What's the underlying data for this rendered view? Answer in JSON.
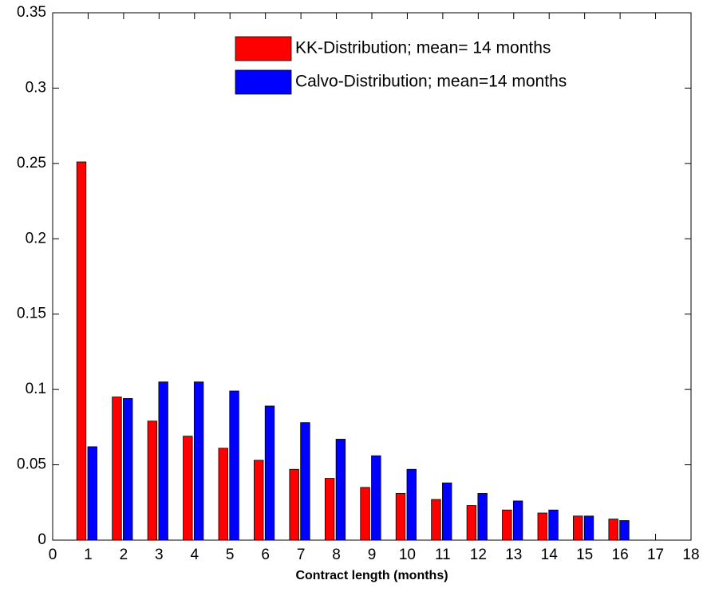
{
  "chart_data": {
    "type": "bar",
    "x_label": "Contract length (months)",
    "x": [
      1,
      2,
      3,
      4,
      5,
      6,
      7,
      8,
      9,
      10,
      11,
      12,
      13,
      14,
      15,
      16
    ],
    "series": [
      {
        "name": "KK-Distribution; mean= 14 months",
        "color": "#ff0000",
        "values": [
          0.251,
          0.095,
          0.079,
          0.069,
          0.061,
          0.053,
          0.047,
          0.041,
          0.035,
          0.031,
          0.027,
          0.023,
          0.02,
          0.018,
          0.016,
          0.014
        ]
      },
      {
        "name": "Calvo-Distribution; mean=14 months",
        "color": "#0000ff",
        "values": [
          0.062,
          0.094,
          0.105,
          0.105,
          0.099,
          0.089,
          0.078,
          0.067,
          0.056,
          0.047,
          0.038,
          0.031,
          0.026,
          0.02,
          0.016,
          0.013
        ]
      }
    ],
    "xlim": [
      0,
      18
    ],
    "xticks": [
      0,
      1,
      2,
      3,
      4,
      5,
      6,
      7,
      8,
      9,
      10,
      11,
      12,
      13,
      14,
      15,
      16,
      17,
      18
    ],
    "ylim": [
      0,
      0.35
    ],
    "yticks": [
      0,
      0.05,
      0.1,
      0.15,
      0.2,
      0.25,
      0.3,
      0.35
    ],
    "grid": false,
    "legend": "upper right"
  }
}
